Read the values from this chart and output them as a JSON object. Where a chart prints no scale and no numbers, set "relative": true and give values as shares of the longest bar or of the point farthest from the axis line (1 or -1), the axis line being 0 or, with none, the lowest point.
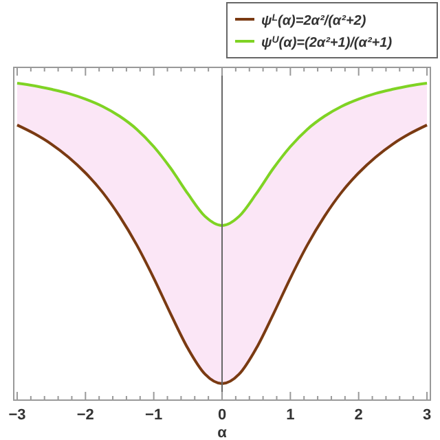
{
  "chart_data": {
    "type": "line",
    "relative": true,
    "xlabel": "α",
    "xlim": [
      -3.05,
      3.05
    ],
    "xticks": [
      -3,
      {
        "value": -2.8,
        "label": null
      },
      {
        "value": -2.6,
        "label": null
      },
      {
        "value": -2.4,
        "label": null
      },
      {
        "value": -2.2,
        "label": null
      },
      -2,
      {
        "value": -1.8,
        "label": null
      },
      {
        "value": -1.6,
        "label": null
      },
      {
        "value": -1.4,
        "label": null
      },
      {
        "value": -1.2,
        "label": null
      },
      -1,
      {
        "value": -0.8,
        "label": null
      },
      {
        "value": -0.6,
        "label": null
      },
      {
        "value": -0.4,
        "label": null
      },
      {
        "value": -0.2,
        "label": null
      },
      0,
      {
        "value": 0.2,
        "label": null
      },
      {
        "value": 0.4,
        "label": null
      },
      {
        "value": 0.6,
        "label": null
      },
      {
        "value": 0.8,
        "label": null
      },
      1,
      {
        "value": 1.2,
        "label": null
      },
      {
        "value": 1.4,
        "label": null
      },
      {
        "value": 1.6,
        "label": null
      },
      {
        "value": 1.8,
        "label": null
      },
      2,
      {
        "value": 2.2,
        "label": null
      },
      {
        "value": 2.4,
        "label": null
      },
      {
        "value": 2.6,
        "label": null
      },
      {
        "value": 2.8,
        "label": null
      },
      3
    ],
    "x": [
      -3,
      -2.75,
      -2.5,
      -2.25,
      -2,
      -1.75,
      -1.5,
      -1.25,
      -1,
      -0.75,
      -0.5,
      -0.25,
      0,
      0.25,
      0.5,
      0.75,
      1,
      1.25,
      1.5,
      1.75,
      2,
      2.25,
      2.5,
      2.75,
      3
    ],
    "tick_labels": "x",
    "legend": "top right",
    "line_style": "solid",
    "marker": "none",
    "series": [
      {
        "name": "ψ$^{L}$(α)=2α²/(α²+2)",
        "color": "#7a3a12",
        "values": [
          0.868,
          0.841,
          0.808,
          0.767,
          0.717,
          0.656,
          0.58,
          0.49,
          0.385,
          0.271,
          0.163,
          0.082,
          0.052,
          0.082,
          0.163,
          0.271,
          0.385,
          0.49,
          0.58,
          0.656,
          0.717,
          0.767,
          0.808,
          0.841,
          0.868
        ]
      },
      {
        "name": "ψ$^{U}$(α)=(2α²+1)/(α²+1)",
        "color": "#7fd324",
        "values": [
          1.0,
          0.992,
          0.981,
          0.968,
          0.95,
          0.927,
          0.896,
          0.855,
          0.8,
          0.731,
          0.651,
          0.58,
          0.551,
          0.58,
          0.651,
          0.731,
          0.8,
          0.855,
          0.896,
          0.927,
          0.95,
          0.968,
          0.981,
          0.992,
          1.0
        ],
        "lower": [
          0.868,
          0.841,
          0.808,
          0.767,
          0.717,
          0.656,
          0.58,
          0.49,
          0.385,
          0.271,
          0.163,
          0.082,
          0.052,
          0.082,
          0.163,
          0.271,
          0.385,
          0.49,
          0.58,
          0.656,
          0.717,
          0.767,
          0.808,
          0.841,
          0.868
        ],
        "upper": [
          1.0,
          0.992,
          0.981,
          0.968,
          0.95,
          0.927,
          0.896,
          0.855,
          0.8,
          0.731,
          0.651,
          0.58,
          0.551,
          0.58,
          0.651,
          0.731,
          0.8,
          0.855,
          0.896,
          0.927,
          0.95,
          0.968,
          0.981,
          0.992,
          1.0
        ]
      }
    ]
  }
}
